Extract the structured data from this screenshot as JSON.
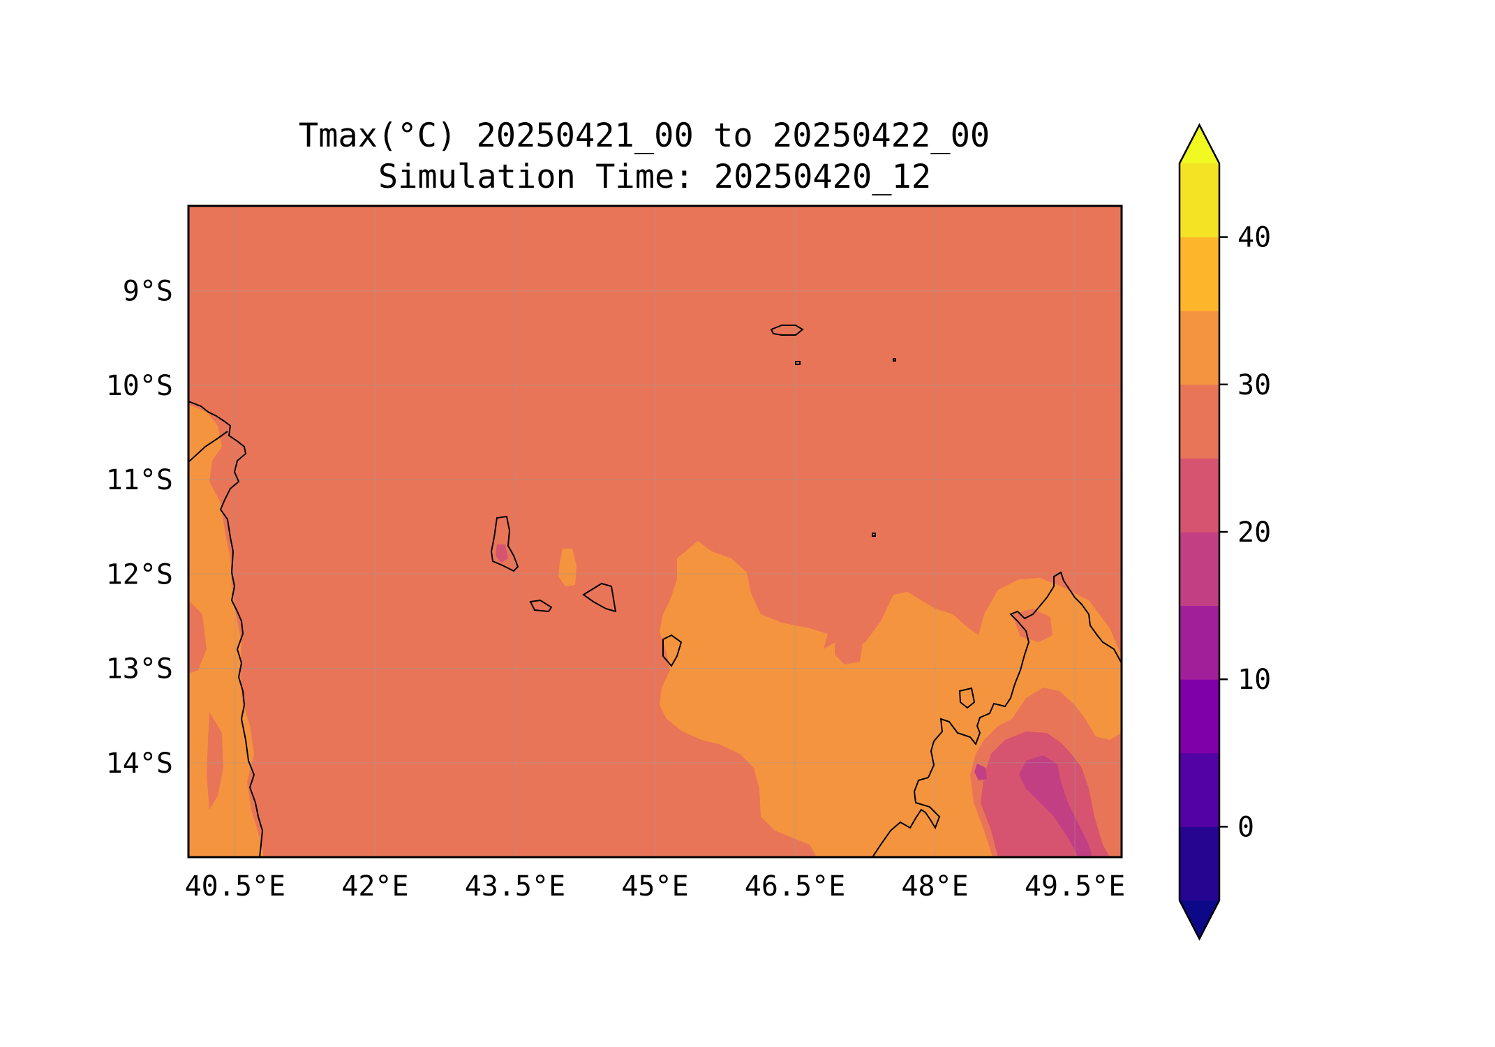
{
  "title": {
    "line1": "Tmax(°C) 20250421_00 to 20250422_00",
    "line2": "Simulation Time: 20250420_12"
  },
  "map": {
    "projection": "PlateCarree",
    "lon_range": [
      40.0,
      50.0
    ],
    "lat_range": [
      -15.0,
      -8.1
    ],
    "x_ticks": [
      {
        "value": 40.5,
        "label": "40.5°E"
      },
      {
        "value": 42.0,
        "label": "42°E"
      },
      {
        "value": 43.5,
        "label": "43.5°E"
      },
      {
        "value": 45.0,
        "label": "45°E"
      },
      {
        "value": 46.5,
        "label": "46.5°E"
      },
      {
        "value": 48.0,
        "label": "48°E"
      },
      {
        "value": 49.5,
        "label": "49.5°E"
      }
    ],
    "y_ticks": [
      {
        "value": -9,
        "label": "9°S"
      },
      {
        "value": -10,
        "label": "10°S"
      },
      {
        "value": -11,
        "label": "11°S"
      },
      {
        "value": -12,
        "label": "12°S"
      },
      {
        "value": -13,
        "label": "13°S"
      },
      {
        "value": -14,
        "label": "14°S"
      }
    ],
    "gridlines": true,
    "coastlines": true,
    "background_level_color": "#e97558",
    "warm_level_color": "#f5943f",
    "cool_level_color": "#d6546f",
    "coolest_level_color": "#c23f84"
  },
  "colorbar": {
    "extend": "both",
    "levels": [
      -5,
      0,
      5,
      10,
      15,
      20,
      25,
      30,
      35,
      40,
      45
    ],
    "colors": [
      "#260591",
      "#5302a3",
      "#7f00a8",
      "#a21f9a",
      "#c23f84",
      "#d6546f",
      "#e97558",
      "#f5943f",
      "#fdb62b",
      "#f4e225"
    ],
    "under_color": "#0d0887",
    "over_color": "#f0f921",
    "ticks": [
      {
        "value": 0,
        "label": "0"
      },
      {
        "value": 10,
        "label": "10"
      },
      {
        "value": 20,
        "label": "20"
      },
      {
        "value": 30,
        "label": "30"
      },
      {
        "value": 40,
        "label": "40"
      }
    ]
  }
}
